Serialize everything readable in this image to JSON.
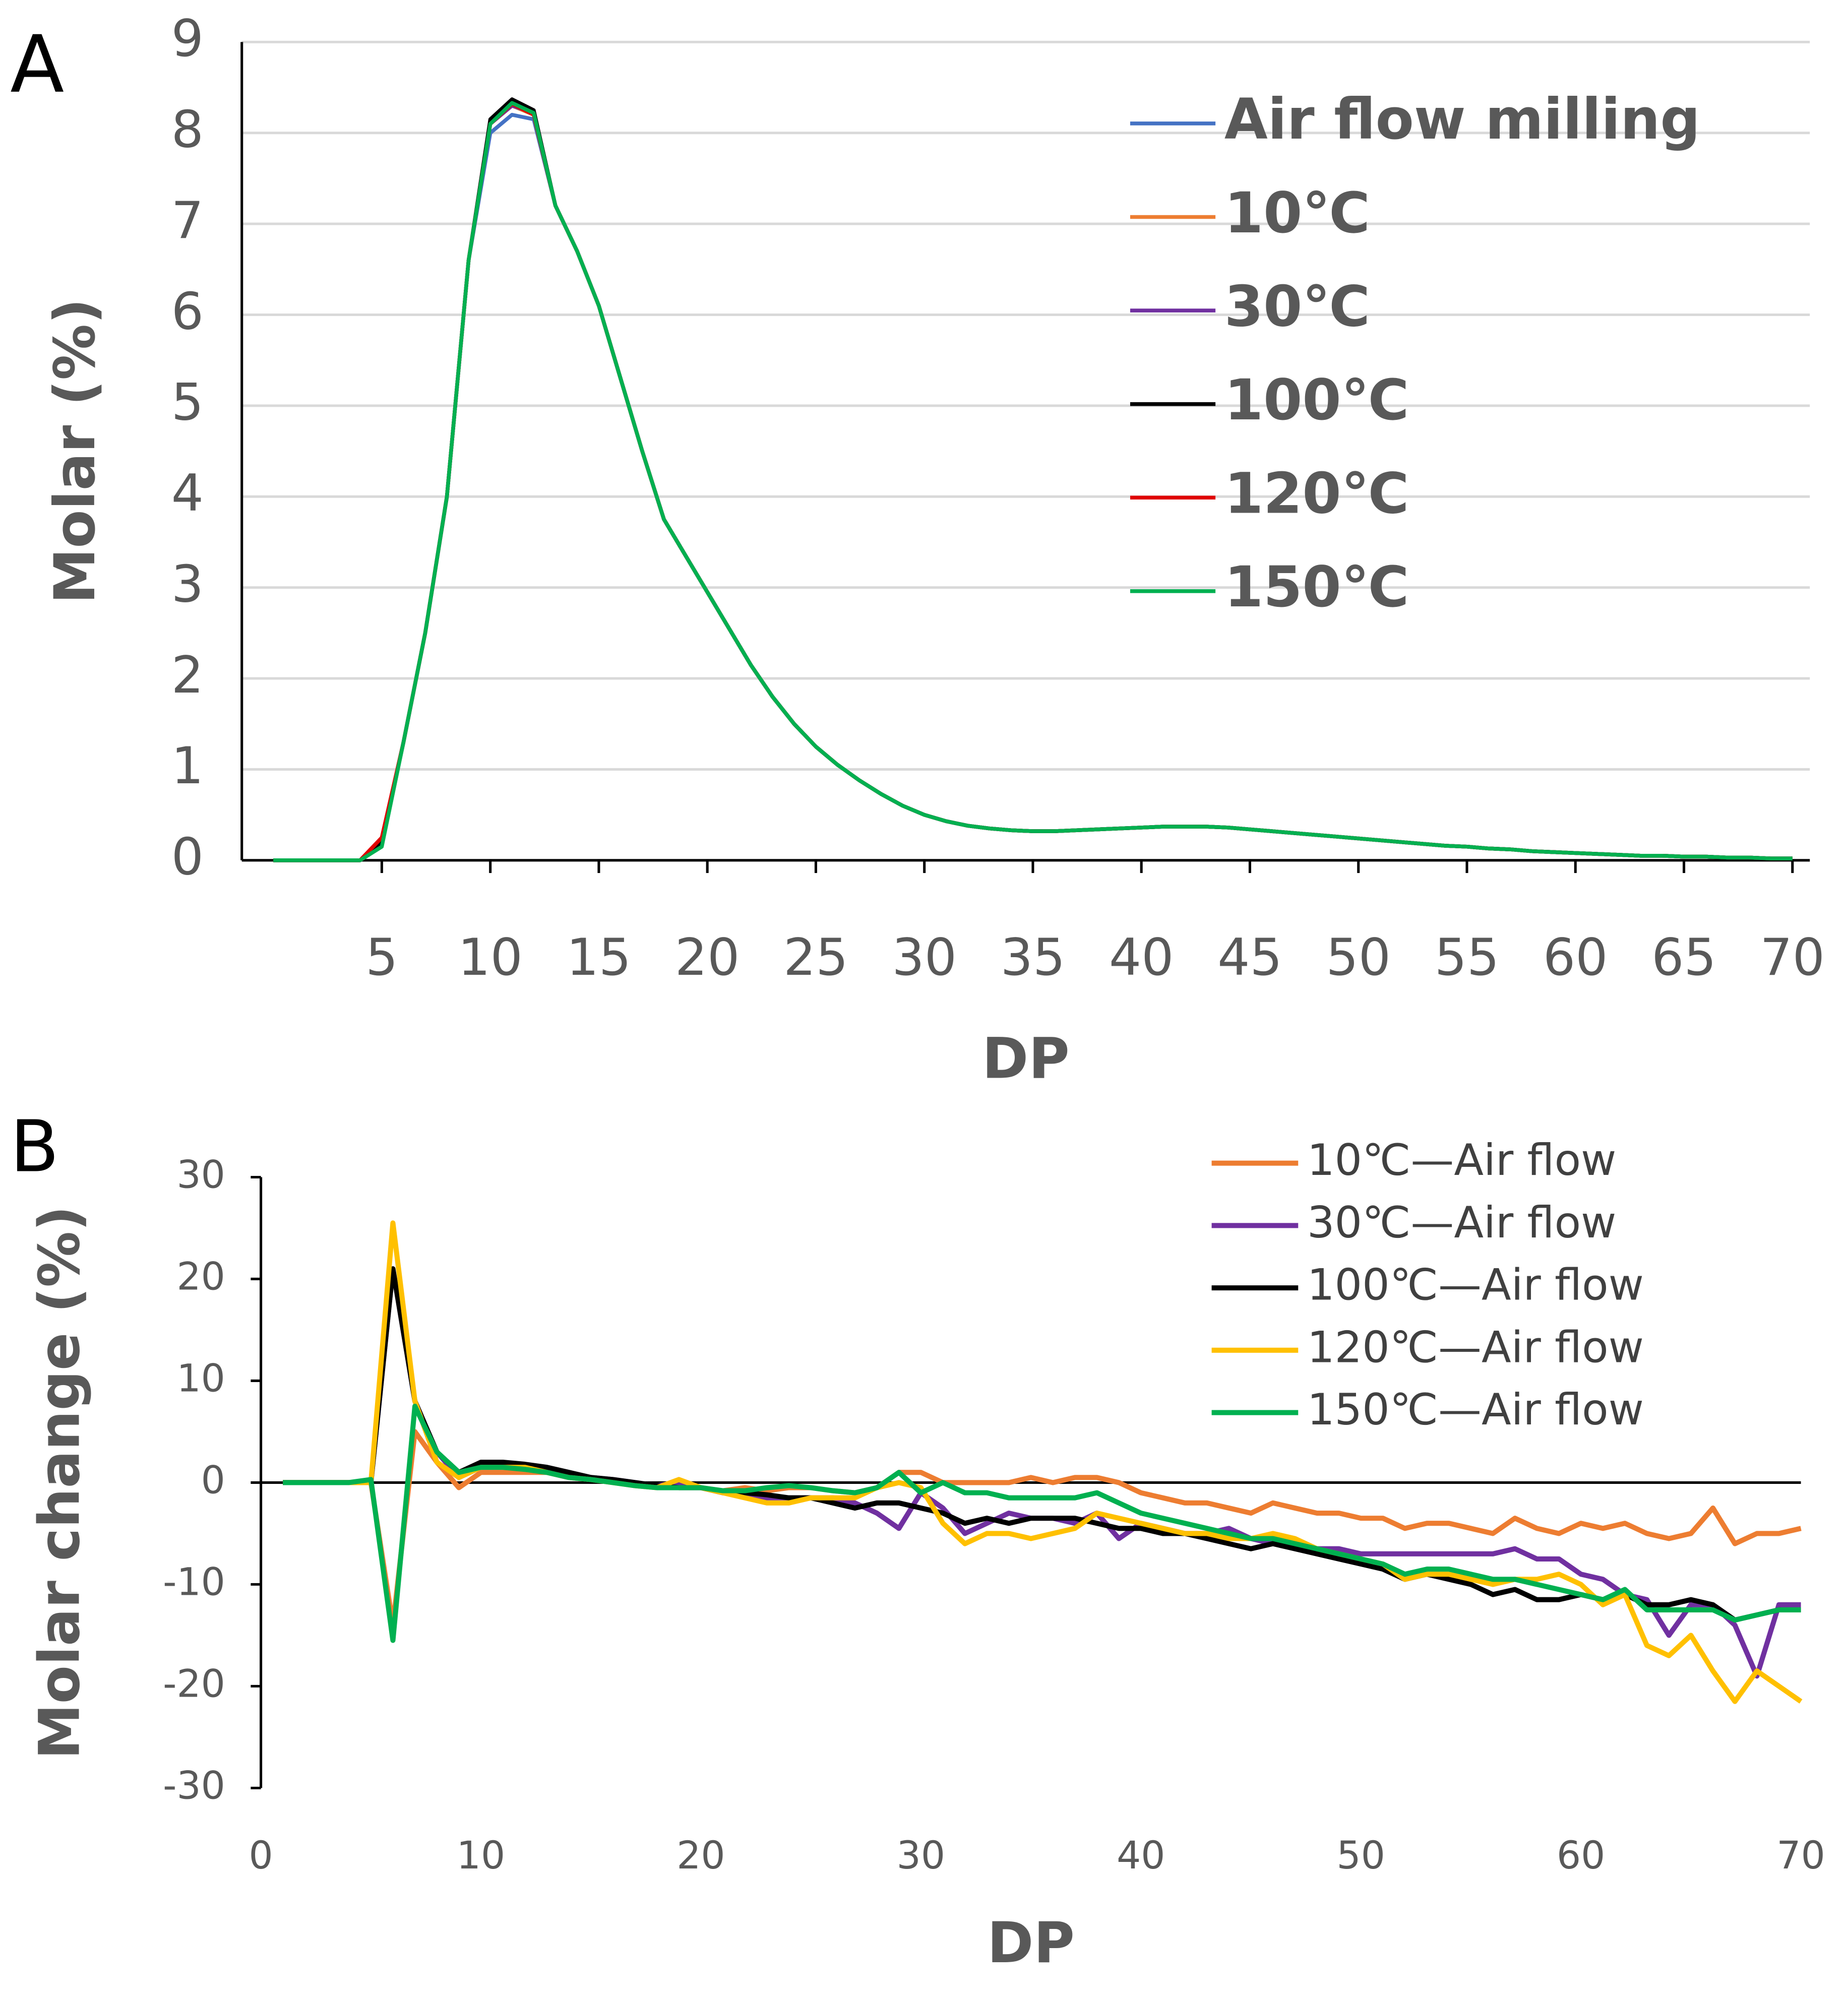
{
  "chart_data": [
    {
      "type": "line",
      "panel_label": "A",
      "xlabel": "DP",
      "ylabel": "Molar (%)",
      "grid": true,
      "legend": "upper right",
      "xlim": [
        -1.45,
        70.8
      ],
      "ylim": [
        0,
        9
      ],
      "xticks": [
        5,
        10,
        15,
        20,
        25,
        30,
        35,
        40,
        45,
        50,
        55,
        60,
        65,
        70
      ],
      "yticks": [
        0,
        1,
        2,
        3,
        4,
        5,
        6,
        7,
        8,
        9
      ],
      "x": [
        0,
        1,
        2,
        3,
        4,
        5,
        6,
        7,
        8,
        9,
        10,
        11,
        12,
        13,
        14,
        15,
        16,
        17,
        18,
        19,
        20,
        21,
        22,
        23,
        24,
        25,
        26,
        27,
        28,
        29,
        30,
        31,
        32,
        33,
        34,
        35,
        36,
        37,
        38,
        39,
        40,
        41,
        42,
        43,
        44,
        45,
        46,
        47,
        48,
        49,
        50,
        51,
        52,
        53,
        54,
        55,
        56,
        57,
        58,
        59,
        60,
        61,
        62,
        63,
        64,
        65,
        66,
        67,
        68,
        69,
        70
      ],
      "series": [
        {
          "name": "Air flow milling",
          "color": "#4472c4",
          "values": [
            0,
            0,
            0,
            0,
            0,
            0.2,
            1.3,
            2.5,
            4.0,
            6.6,
            8.0,
            8.2,
            8.15,
            7.2,
            6.7,
            6.1,
            5.3,
            4.5,
            3.75,
            3.35,
            2.95,
            2.55,
            2.15,
            1.8,
            1.5,
            1.25,
            1.05,
            0.88,
            0.73,
            0.6,
            0.5,
            0.43,
            0.38,
            0.35,
            0.33,
            0.32,
            0.32,
            0.33,
            0.34,
            0.35,
            0.36,
            0.37,
            0.37,
            0.37,
            0.36,
            0.34,
            0.32,
            0.3,
            0.28,
            0.26,
            0.24,
            0.22,
            0.2,
            0.18,
            0.16,
            0.15,
            0.13,
            0.12,
            0.1,
            0.09,
            0.08,
            0.07,
            0.06,
            0.05,
            0.05,
            0.04,
            0.04,
            0.03,
            0.03,
            0.02,
            0.02
          ]
        },
        {
          "name": "10℃",
          "color": "#ed7d31",
          "values": [
            0,
            0,
            0,
            0,
            0,
            0.2,
            1.3,
            2.5,
            4.0,
            6.6,
            8.1,
            8.3,
            8.2,
            7.2,
            6.7,
            6.1,
            5.3,
            4.5,
            3.75,
            3.35,
            2.95,
            2.55,
            2.15,
            1.8,
            1.5,
            1.25,
            1.05,
            0.88,
            0.73,
            0.6,
            0.5,
            0.43,
            0.38,
            0.35,
            0.33,
            0.32,
            0.32,
            0.33,
            0.34,
            0.35,
            0.36,
            0.37,
            0.37,
            0.37,
            0.36,
            0.34,
            0.32,
            0.3,
            0.28,
            0.26,
            0.24,
            0.22,
            0.2,
            0.18,
            0.16,
            0.15,
            0.13,
            0.12,
            0.1,
            0.09,
            0.08,
            0.07,
            0.06,
            0.05,
            0.05,
            0.04,
            0.04,
            0.03,
            0.03,
            0.02,
            0.02
          ]
        },
        {
          "name": "30℃",
          "color": "#7030a0",
          "values": [
            0,
            0,
            0,
            0,
            0,
            0.2,
            1.3,
            2.5,
            4.0,
            6.6,
            8.1,
            8.3,
            8.22,
            7.2,
            6.7,
            6.1,
            5.3,
            4.5,
            3.75,
            3.35,
            2.95,
            2.55,
            2.15,
            1.8,
            1.5,
            1.25,
            1.05,
            0.88,
            0.73,
            0.6,
            0.5,
            0.43,
            0.38,
            0.35,
            0.33,
            0.32,
            0.32,
            0.33,
            0.34,
            0.35,
            0.36,
            0.37,
            0.37,
            0.37,
            0.36,
            0.34,
            0.32,
            0.3,
            0.28,
            0.26,
            0.24,
            0.22,
            0.2,
            0.18,
            0.16,
            0.15,
            0.13,
            0.12,
            0.1,
            0.09,
            0.08,
            0.07,
            0.06,
            0.05,
            0.05,
            0.04,
            0.04,
            0.03,
            0.03,
            0.02,
            0.02
          ]
        },
        {
          "name": "100℃",
          "color": "#000000",
          "values": [
            0,
            0,
            0,
            0,
            0,
            0.2,
            1.3,
            2.5,
            4.0,
            6.6,
            8.15,
            8.37,
            8.25,
            7.2,
            6.7,
            6.1,
            5.3,
            4.5,
            3.75,
            3.35,
            2.95,
            2.55,
            2.15,
            1.8,
            1.5,
            1.25,
            1.05,
            0.88,
            0.73,
            0.6,
            0.5,
            0.43,
            0.38,
            0.35,
            0.33,
            0.32,
            0.32,
            0.33,
            0.34,
            0.35,
            0.36,
            0.37,
            0.37,
            0.37,
            0.36,
            0.34,
            0.32,
            0.3,
            0.28,
            0.26,
            0.24,
            0.22,
            0.2,
            0.18,
            0.16,
            0.15,
            0.13,
            0.12,
            0.1,
            0.09,
            0.08,
            0.07,
            0.06,
            0.05,
            0.05,
            0.04,
            0.04,
            0.03,
            0.03,
            0.02,
            0.02
          ]
        },
        {
          "name": "120℃",
          "color": "#e00000",
          "values": [
            0,
            0,
            0,
            0,
            0,
            0.25,
            1.3,
            2.5,
            4.0,
            6.6,
            8.1,
            8.32,
            8.2,
            7.2,
            6.7,
            6.1,
            5.3,
            4.5,
            3.75,
            3.35,
            2.95,
            2.55,
            2.15,
            1.8,
            1.5,
            1.25,
            1.05,
            0.88,
            0.73,
            0.6,
            0.5,
            0.43,
            0.38,
            0.35,
            0.33,
            0.32,
            0.32,
            0.33,
            0.34,
            0.35,
            0.36,
            0.37,
            0.37,
            0.37,
            0.36,
            0.34,
            0.32,
            0.3,
            0.28,
            0.26,
            0.24,
            0.22,
            0.2,
            0.18,
            0.16,
            0.15,
            0.13,
            0.12,
            0.1,
            0.09,
            0.08,
            0.07,
            0.06,
            0.05,
            0.05,
            0.04,
            0.04,
            0.03,
            0.03,
            0.02,
            0.02
          ]
        },
        {
          "name": "150℃",
          "color": "#00b050",
          "values": [
            0,
            0,
            0,
            0,
            0,
            0.15,
            1.3,
            2.5,
            4.0,
            6.6,
            8.1,
            8.33,
            8.22,
            7.2,
            6.7,
            6.1,
            5.3,
            4.5,
            3.75,
            3.35,
            2.95,
            2.55,
            2.15,
            1.8,
            1.5,
            1.25,
            1.05,
            0.88,
            0.73,
            0.6,
            0.5,
            0.43,
            0.38,
            0.35,
            0.33,
            0.32,
            0.32,
            0.33,
            0.34,
            0.35,
            0.36,
            0.37,
            0.37,
            0.37,
            0.36,
            0.34,
            0.32,
            0.3,
            0.28,
            0.26,
            0.24,
            0.22,
            0.2,
            0.18,
            0.16,
            0.15,
            0.13,
            0.12,
            0.1,
            0.09,
            0.08,
            0.07,
            0.06,
            0.05,
            0.05,
            0.04,
            0.04,
            0.03,
            0.03,
            0.02,
            0.02
          ]
        }
      ]
    },
    {
      "type": "line",
      "panel_label": "B",
      "xlabel": "DP",
      "ylabel": "Molar change (%)",
      "grid": false,
      "legend": "upper right",
      "xlim": [
        0,
        70
      ],
      "ylim": [
        -30,
        30
      ],
      "xticks": [
        0,
        10,
        20,
        30,
        40,
        50,
        60,
        70
      ],
      "yticks": [
        -30,
        -20,
        -10,
        0,
        10,
        20,
        30
      ],
      "x": [
        1,
        2,
        3,
        4,
        5,
        6,
        7,
        8,
        9,
        10,
        11,
        12,
        13,
        14,
        15,
        16,
        17,
        18,
        19,
        20,
        21,
        22,
        23,
        24,
        25,
        26,
        27,
        28,
        29,
        30,
        31,
        32,
        33,
        34,
        35,
        36,
        37,
        38,
        39,
        40,
        41,
        42,
        43,
        44,
        45,
        46,
        47,
        48,
        49,
        50,
        51,
        52,
        53,
        54,
        55,
        56,
        57,
        58,
        59,
        60,
        61,
        62,
        63,
        64,
        65,
        66,
        67,
        68,
        69,
        70
      ],
      "series": [
        {
          "name": "10℃—Air flow",
          "color": "#ed7d31",
          "values": [
            0,
            0,
            0,
            0,
            0,
            -14,
            5,
            2,
            -0.5,
            1,
            1,
            1,
            1,
            0.5,
            0.3,
            0,
            -0.3,
            -0.5,
            -0.3,
            -0.5,
            -0.8,
            -0.5,
            -0.8,
            -0.5,
            -0.5,
            -0.8,
            -1,
            -0.5,
            1,
            1,
            0,
            0,
            0,
            0,
            0.5,
            0,
            0.5,
            0.5,
            0,
            -1,
            -1.5,
            -2,
            -2,
            -2.5,
            -3,
            -2,
            -2.5,
            -3,
            -3,
            -3.5,
            -3.5,
            -4.5,
            -4,
            -4,
            -4.5,
            -5,
            -3.5,
            -4.5,
            -5,
            -4,
            -4.5,
            -4,
            -5,
            -5.5,
            -5,
            -2.5,
            -6,
            -5,
            -5,
            -4.5
          ]
        },
        {
          "name": "30℃—Air flow",
          "color": "#7030a0",
          "values": [
            0,
            0,
            0,
            0,
            0,
            21,
            8,
            3,
            0.5,
            1.5,
            1.5,
            1.5,
            1,
            0.5,
            0.5,
            0.3,
            0,
            -0.3,
            0,
            -0.5,
            -1,
            -1,
            -1.5,
            -1.5,
            -1.5,
            -1.5,
            -2,
            -3,
            -4.5,
            -1,
            -2.5,
            -5,
            -4,
            -3,
            -3.5,
            -3.5,
            -4,
            -3,
            -5.5,
            -4,
            -4.5,
            -5,
            -5,
            -4.5,
            -5.5,
            -6,
            -6,
            -6.5,
            -6.5,
            -7,
            -7,
            -7,
            -7,
            -7,
            -7,
            -7,
            -6.5,
            -7.5,
            -7.5,
            -9,
            -9.5,
            -11,
            -11.5,
            -15,
            -12,
            -12,
            -14,
            -19,
            -12,
            -12
          ]
        },
        {
          "name": "100℃—Air flow",
          "color": "#000000",
          "values": [
            0,
            0,
            0,
            0,
            0,
            21,
            8,
            3,
            1,
            2,
            2,
            1.8,
            1.5,
            1,
            0.5,
            0.3,
            0,
            -0.3,
            -0.5,
            -0.5,
            -1,
            -1,
            -1.2,
            -1.5,
            -1.5,
            -2,
            -2.5,
            -2,
            -2,
            -2.5,
            -3,
            -4,
            -3.5,
            -4,
            -3.5,
            -3.5,
            -3.5,
            -4,
            -4.5,
            -4.5,
            -5,
            -5,
            -5.5,
            -6,
            -6.5,
            -6,
            -6.5,
            -7,
            -7.5,
            -8,
            -8.5,
            -9.5,
            -9,
            -9.5,
            -10,
            -11,
            -10.5,
            -11.5,
            -11.5,
            -11,
            -11.5,
            -11,
            -12,
            -12,
            -11.5,
            -12,
            -13.5,
            -13,
            -12.5,
            -12.5
          ]
        },
        {
          "name": "120℃—Air flow",
          "color": "#ffc000",
          "values": [
            0,
            0,
            0,
            0,
            0,
            25.5,
            8,
            2,
            0.5,
            1.5,
            1.5,
            1.5,
            1,
            0.5,
            0.3,
            0,
            -0.3,
            -0.5,
            0.3,
            -0.5,
            -1,
            -1.5,
            -2,
            -2,
            -1.5,
            -1.5,
            -1.5,
            -0.5,
            0,
            -0.5,
            -4,
            -6,
            -5,
            -5,
            -5.5,
            -5,
            -4.5,
            -3,
            -3.5,
            -4,
            -4.5,
            -5,
            -5,
            -5.5,
            -5.5,
            -5,
            -5.5,
            -6.5,
            -7,
            -7.5,
            -8,
            -9.5,
            -9,
            -9,
            -9.5,
            -10,
            -9.5,
            -9.5,
            -9,
            -10,
            -12,
            -11,
            -16,
            -17,
            -15,
            -18.5,
            -21.5,
            -18.5,
            -20,
            -21.5
          ]
        },
        {
          "name": "150℃—Air flow",
          "color": "#00b050",
          "values": [
            0,
            0,
            0,
            0,
            0.3,
            -15.5,
            7.5,
            3,
            1,
            1.5,
            1.5,
            1.3,
            1,
            0.5,
            0.3,
            0,
            -0.3,
            -0.5,
            -0.5,
            -0.5,
            -0.8,
            -0.8,
            -0.5,
            -0.3,
            -0.5,
            -0.8,
            -1,
            -0.5,
            1,
            -1,
            0,
            -1,
            -1,
            -1.5,
            -1.5,
            -1.5,
            -1.5,
            -1,
            -2,
            -3,
            -3.5,
            -4,
            -4.5,
            -5,
            -5.5,
            -5.5,
            -6,
            -6.5,
            -7,
            -7.5,
            -8,
            -9,
            -8.5,
            -8.5,
            -9,
            -9.5,
            -9.5,
            -10,
            -10.5,
            -11,
            -11.5,
            -10.5,
            -12.5,
            -12.5,
            -12.5,
            -12.5,
            -13.5,
            -13,
            -12.5,
            -12.5
          ]
        }
      ]
    }
  ]
}
